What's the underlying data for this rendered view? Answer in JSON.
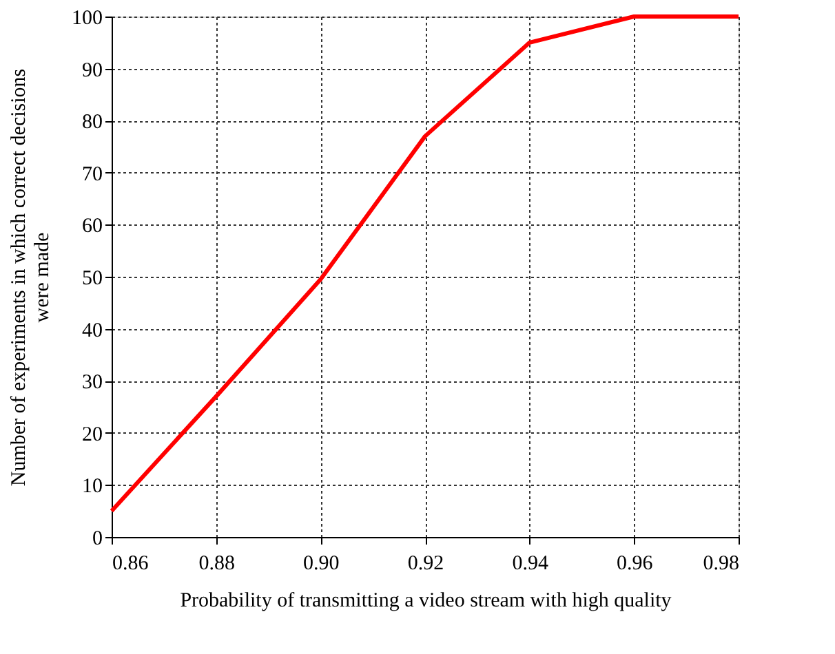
{
  "chart_data": {
    "type": "line",
    "xlabel": "Probability of transmitting a video stream with high quality",
    "ylabel": "Number of experiments in which correct decisions were made",
    "x": [
      0.86,
      0.88,
      0.9,
      0.92,
      0.94,
      0.96,
      0.98
    ],
    "series": [
      {
        "color": "#ff0000",
        "values": [
          5,
          27,
          49.5,
          77,
          95,
          100,
          100
        ]
      }
    ],
    "xlim": [
      0.86,
      0.98
    ],
    "xticks": [
      0.86,
      0.88,
      {
        "value": 0.9,
        "label": "0.90"
      },
      0.92,
      0.94,
      0.96,
      0.98
    ],
    "ylim": [
      0,
      100
    ],
    "yticks": [
      0,
      10,
      20,
      30,
      40,
      50,
      60,
      70,
      80,
      90,
      100
    ],
    "grid": true,
    "marker": "none",
    "line_style": "solid"
  }
}
